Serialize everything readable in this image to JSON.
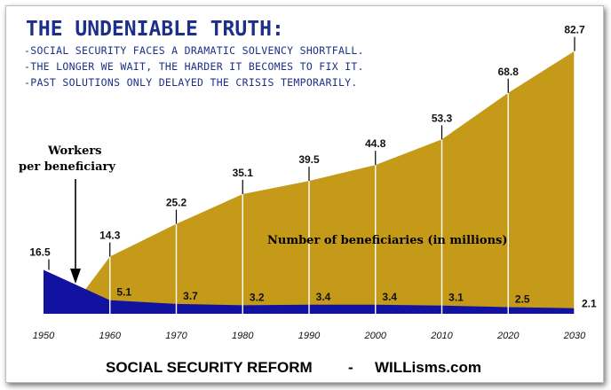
{
  "header": {
    "title": "THE UNDENIABLE TRUTH:",
    "bullets": [
      "-SOCIAL SECURITY FACES A DRAMATIC SOLVENCY SHORTFALL.",
      "-THE LONGER WE WAIT, THE HARDER IT BECOMES TO FIX IT.",
      "-PAST SOLUTIONS ONLY DELAYED THE CRISIS TEMPORARILY."
    ]
  },
  "annotations": {
    "workers_label_line1": "Workers",
    "workers_label_line2": "per beneficiary",
    "beneficiaries_label": "Number of beneficiaries (in millions)"
  },
  "footer": {
    "left": "SOCIAL SECURITY REFORM",
    "dash": "-",
    "right": "WILLisms.com"
  },
  "colors": {
    "beneficiaries_fill": "#c49a18",
    "workers_fill": "#1212a0",
    "text_blue": "#1c2f8a"
  },
  "chart_data": {
    "type": "area",
    "x": [
      1950,
      1960,
      1970,
      1980,
      1990,
      2000,
      2010,
      2020,
      2030
    ],
    "xlim": [
      1950,
      2030
    ],
    "series": [
      {
        "name": "Number of beneficiaries (in millions)",
        "x": [
          1955,
          1960,
          1970,
          1980,
          1990,
          2000,
          2010,
          2020,
          2030
        ],
        "values": [
          null,
          14.3,
          25.2,
          35.1,
          39.5,
          44.8,
          53.3,
          68.8,
          82.7
        ],
        "labels": [
          "14.3",
          "25.2",
          "35.1",
          "39.5",
          "44.8",
          "53.3",
          "68.8",
          "82.7"
        ]
      },
      {
        "name": "Workers per beneficiary",
        "x": [
          1950,
          1960,
          1970,
          1980,
          1990,
          2000,
          2010,
          2020,
          2030
        ],
        "values": [
          16.5,
          5.1,
          3.7,
          3.2,
          3.4,
          3.4,
          3.1,
          2.5,
          2.1
        ],
        "labels": [
          "16.5",
          "5.1",
          "3.7",
          "3.2",
          "3.4",
          "3.4",
          "3.1",
          "2.5",
          "2.1"
        ]
      }
    ],
    "tick_labels": [
      "1950",
      "1960",
      "1970",
      "1980",
      "1990",
      "2000",
      "2010",
      "2020",
      "2030"
    ]
  }
}
